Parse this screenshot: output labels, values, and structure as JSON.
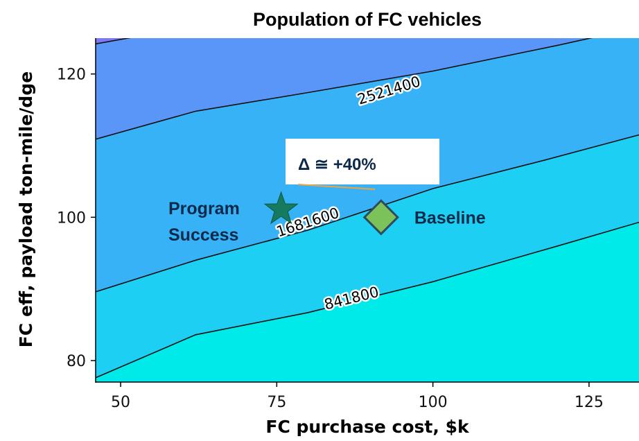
{
  "chart_data": {
    "type": "contour",
    "title": "Population of FC vehicles",
    "xlabel": "FC purchase cost, $k",
    "ylabel": "FC eff, payload ton-mile/dge",
    "xlim": [
      46,
      133
    ],
    "ylim": [
      77,
      125
    ],
    "xticks": [
      50,
      75,
      100,
      125
    ],
    "yticks": [
      80,
      100,
      120
    ],
    "fill_colors": [
      "#00eaea",
      "#1ccff3",
      "#38b2f6",
      "#5a95f8",
      "#7d78f8",
      "#a65ef5"
    ],
    "contours": [
      {
        "label": "841800",
        "label_at": [
          87,
          88.6
        ],
        "label_angle": -14,
        "points": [
          [
            46,
            77.6
          ],
          [
            62,
            83.6
          ],
          [
            80,
            86.7
          ],
          [
            100,
            91.0
          ],
          [
            120,
            96.0
          ],
          [
            133,
            99.3
          ]
        ]
      },
      {
        "label": "1681600",
        "label_at": [
          80,
          99.2
        ],
        "label_angle": -18,
        "points": [
          [
            46,
            89.6
          ],
          [
            62,
            94.0
          ],
          [
            80,
            98.2
          ],
          [
            100,
            104.0
          ],
          [
            118,
            108.0
          ],
          [
            133,
            111.5
          ]
        ]
      },
      {
        "label": "2521400",
        "label_at": [
          93,
          117.6
        ],
        "label_angle": -17,
        "points": [
          [
            46,
            110.9
          ],
          [
            62,
            114.8
          ],
          [
            80,
            117.4
          ],
          [
            100,
            120.4
          ],
          [
            120,
            124.0
          ],
          [
            133,
            126.5
          ]
        ]
      },
      {
        "label": "",
        "points": [
          [
            46,
            124.2
          ],
          [
            55,
            125.6
          ]
        ]
      }
    ],
    "markers": [
      {
        "name": "Program Success",
        "shape": "star",
        "x": 75.7,
        "y": 101.1,
        "color": "#157a5e"
      },
      {
        "name": "Baseline",
        "shape": "diamond",
        "x": 91.7,
        "y": 100.0,
        "color": "#7cc25a"
      }
    ],
    "annotation": {
      "text": "Δ ≅ +40%",
      "arrow_color": "#f4a23c"
    }
  }
}
